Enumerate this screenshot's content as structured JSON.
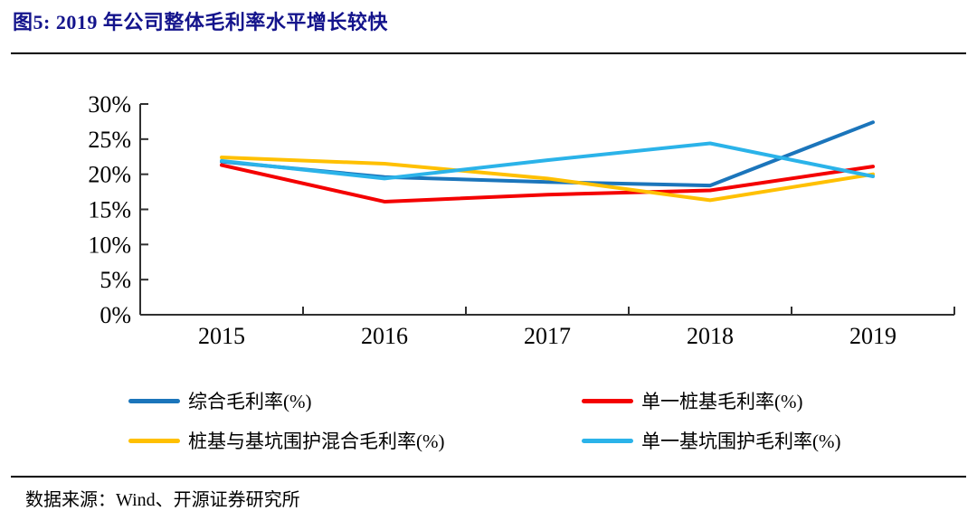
{
  "title": "图5: 2019 年公司整体毛利率水平增长较快",
  "source": "数据来源：Wind、开源证券研究所",
  "colors": {
    "title_text": "#14148C",
    "axis": "#303030",
    "body_text": "#000000"
  },
  "chart_data": {
    "type": "line",
    "title": "2019 年公司整体毛利率水平增长较快",
    "categories": [
      "2015",
      "2016",
      "2017",
      "2018",
      "2019"
    ],
    "series": [
      {
        "name": "综合毛利率(%)",
        "color": "#1B75BB",
        "values": [
          21.8,
          19.6,
          18.9,
          18.4,
          27.4
        ]
      },
      {
        "name": "单一桩基毛利率(%)",
        "color": "#F40000",
        "values": [
          21.3,
          16.1,
          17.1,
          17.7,
          21.1
        ]
      },
      {
        "name": "桩基与基坑围护混合毛利率(%)",
        "color": "#FFC000",
        "values": [
          22.4,
          21.5,
          19.4,
          16.3,
          20.0
        ]
      },
      {
        "name": "单一基坑围护毛利率(%)",
        "color": "#2BB3E9",
        "values": [
          21.9,
          19.4,
          22.0,
          24.4,
          19.7
        ]
      }
    ],
    "xlabel": "",
    "ylabel": "",
    "ylim": [
      0,
      30
    ],
    "ytick_step": 5,
    "yticks": [
      "0%",
      "5%",
      "10%",
      "15%",
      "20%",
      "25%",
      "30%"
    ],
    "grid": false,
    "legend_position": "bottom"
  }
}
